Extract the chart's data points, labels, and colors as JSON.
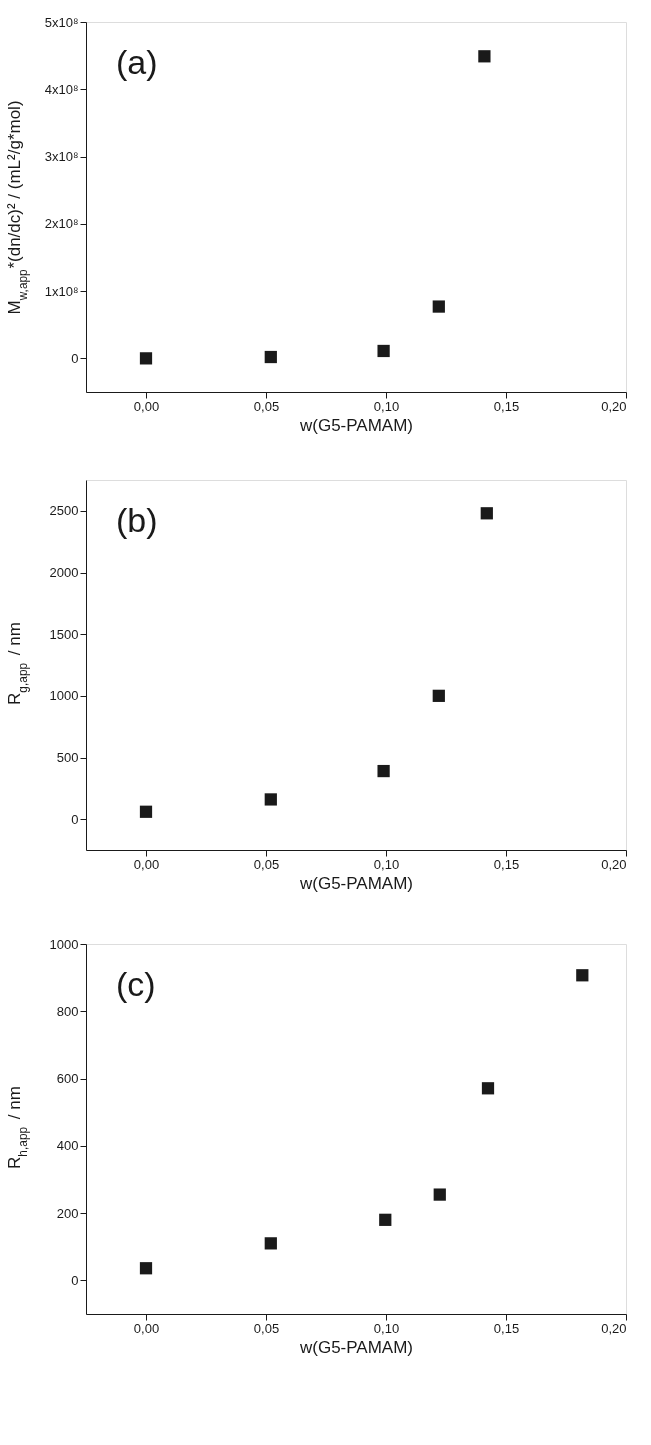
{
  "chart_data": [
    {
      "type": "scatter",
      "annotations": [
        "(a)"
      ],
      "xlabel": "w(G5-PAMAM)",
      "ylabel": "M$_{w,app}$*(dn/dc)² / (mL²/g*mol)",
      "marker": "square",
      "grid": false,
      "x": [
        0,
        0.052,
        0.099,
        0.122,
        0.141
      ],
      "series": [
        {
          "color": "#1a1a1a",
          "values": [
            0,
            2000000,
            11000000,
            77000000,
            449000000
          ]
        }
      ],
      "xlim": [
        -0.025,
        0.2
      ],
      "xticks": [
        {
          "value": 0,
          "label": "0,00"
        },
        {
          "value": 0.05,
          "label": "0,05"
        },
        {
          "value": 0.1,
          "label": "0,10"
        },
        {
          "value": 0.15,
          "label": "0,15"
        },
        {
          "value": 0.2,
          "label": "0,20"
        }
      ],
      "ylim": [
        -50000000,
        500000000
      ],
      "yticks": [
        0,
        {
          "value": 100000000,
          "label": "1x10⁸"
        },
        {
          "value": 200000000,
          "label": "2x10⁸"
        },
        {
          "value": 300000000,
          "label": "3x10⁸"
        },
        {
          "value": 400000000,
          "label": "4x10⁸"
        },
        {
          "value": 500000000,
          "label": "5x10⁸"
        }
      ]
    },
    {
      "type": "scatter",
      "annotations": [
        "(b)"
      ],
      "xlabel": "w(G5-PAMAM)",
      "ylabel": "R$_{g,app}$ / nm",
      "marker": "square",
      "grid": false,
      "x": [
        0,
        0.052,
        0.099,
        0.122,
        0.142
      ],
      "series": [
        {
          "color": "#1a1a1a",
          "values": [
            60,
            160,
            390,
            1000,
            2480
          ]
        }
      ],
      "xlim": [
        -0.025,
        0.2
      ],
      "xticks": [
        {
          "value": 0,
          "label": "0,00"
        },
        {
          "value": 0.05,
          "label": "0,05"
        },
        {
          "value": 0.1,
          "label": "0,10"
        },
        {
          "value": 0.15,
          "label": "0,15"
        },
        {
          "value": 0.2,
          "label": "0,20"
        }
      ],
      "ylim": [
        -250,
        2750
      ],
      "yticks": [
        0,
        500,
        1000,
        1500,
        2000,
        2500
      ]
    },
    {
      "type": "scatter",
      "annotations": [
        "(c)"
      ],
      "xlabel": "w(G5-PAMAM)",
      "ylabel": "R$_{h,app}$ / nm",
      "marker": "square",
      "grid": false,
      "x": [
        0,
        0.052,
        0.0997,
        0.1224,
        0.1425,
        0.1818
      ],
      "series": [
        {
          "color": "#1a1a1a",
          "values": [
            36,
            110,
            180,
            255,
            571,
            907
          ]
        }
      ],
      "xlim": [
        -0.025,
        0.2
      ],
      "xticks": [
        {
          "value": 0,
          "label": "0,00"
        },
        {
          "value": 0.05,
          "label": "0,05"
        },
        {
          "value": 0.1,
          "label": "0,10"
        },
        {
          "value": 0.15,
          "label": "0,15"
        },
        {
          "value": 0.2,
          "label": "0,20"
        }
      ],
      "ylim": [
        -100,
        1000
      ],
      "yticks": [
        0,
        200,
        400,
        600,
        800,
        1000
      ]
    }
  ]
}
